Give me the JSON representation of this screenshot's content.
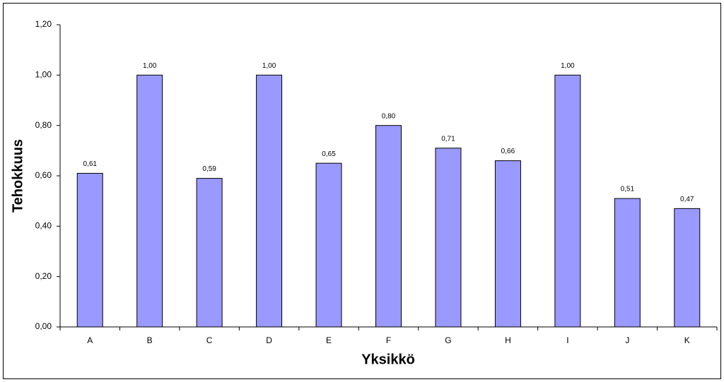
{
  "chart_data": {
    "type": "bar",
    "x_label": "Yksikkö",
    "y_label": "Tehokkuus",
    "categories": [
      "A",
      "B",
      "C",
      "D",
      "E",
      "F",
      "G",
      "H",
      "I",
      "J",
      "K"
    ],
    "values": [
      0.61,
      1.0,
      0.59,
      1.0,
      0.65,
      0.8,
      0.71,
      0.66,
      1.0,
      0.51,
      0.47
    ],
    "value_labels": [
      "0,61",
      "1,00",
      "0,59",
      "1,00",
      "0,65",
      "0,80",
      "0,71",
      "0,66",
      "1,00",
      "0,51",
      "0,47"
    ],
    "color": "#9999ff",
    "ylim": [
      0,
      1.2
    ],
    "yticks": [
      {
        "value": 0,
        "label": "0,00"
      },
      {
        "value": 0.2,
        "label": "0,20"
      },
      {
        "value": 0.4,
        "label": "0,40"
      },
      {
        "value": 0.6,
        "label": "0,60"
      },
      {
        "value": 0.8,
        "label": "0,80"
      },
      {
        "value": 1.0,
        "label": "1,00"
      },
      {
        "value": 1.2,
        "label": "1,20"
      }
    ],
    "grid": false
  }
}
